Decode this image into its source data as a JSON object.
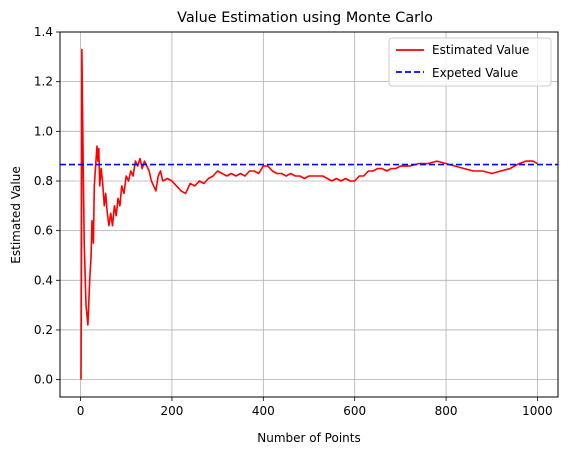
{
  "chart_data": {
    "type": "line",
    "title": "Value Estimation using Monte Carlo",
    "xlabel": "Number of Points",
    "ylabel": "Estimated Value",
    "xlim": [
      -45,
      1045
    ],
    "ylim": [
      -0.07,
      1.4
    ],
    "xticks": [
      0,
      200,
      400,
      600,
      800,
      1000
    ],
    "yticks": [
      0.0,
      0.2,
      0.4,
      0.6,
      0.8,
      1.0,
      1.2,
      1.4
    ],
    "xtick_labels": [
      "0",
      "200",
      "400",
      "600",
      "800",
      "1000"
    ],
    "ytick_labels": [
      "0.0",
      "0.2",
      "0.4",
      "0.6",
      "0.8",
      "1.0",
      "1.2",
      "1.4"
    ],
    "grid": true,
    "legend_position": "top-right",
    "series": [
      {
        "name": "Estimated Value",
        "color": "#ff0000",
        "style": "solid",
        "x": [
          1,
          2,
          3,
          5,
          8,
          12,
          16,
          20,
          23,
          25,
          28,
          30,
          33,
          36,
          38,
          40,
          42,
          45,
          48,
          52,
          55,
          58,
          62,
          66,
          70,
          74,
          78,
          82,
          86,
          90,
          95,
          100,
          105,
          110,
          115,
          120,
          125,
          130,
          135,
          140,
          145,
          150,
          155,
          160,
          165,
          170,
          175,
          180,
          190,
          200,
          210,
          220,
          230,
          240,
          250,
          260,
          270,
          280,
          290,
          300,
          310,
          320,
          330,
          340,
          350,
          360,
          370,
          380,
          390,
          400,
          410,
          420,
          430,
          440,
          450,
          460,
          470,
          480,
          490,
          500,
          510,
          520,
          530,
          540,
          550,
          560,
          570,
          580,
          590,
          600,
          610,
          620,
          630,
          640,
          650,
          660,
          670,
          680,
          690,
          700,
          720,
          740,
          760,
          780,
          800,
          820,
          840,
          860,
          880,
          900,
          920,
          940,
          960,
          975,
          990,
          1000
        ],
        "y": [
          0.0,
          0.5,
          1.33,
          1.0,
          0.55,
          0.3,
          0.22,
          0.4,
          0.5,
          0.64,
          0.55,
          0.78,
          0.86,
          0.94,
          0.88,
          0.93,
          0.78,
          0.85,
          0.8,
          0.7,
          0.75,
          0.68,
          0.62,
          0.67,
          0.62,
          0.7,
          0.66,
          0.73,
          0.7,
          0.78,
          0.75,
          0.82,
          0.8,
          0.84,
          0.82,
          0.88,
          0.86,
          0.89,
          0.85,
          0.88,
          0.86,
          0.84,
          0.8,
          0.78,
          0.76,
          0.82,
          0.84,
          0.8,
          0.81,
          0.8,
          0.78,
          0.76,
          0.75,
          0.79,
          0.78,
          0.8,
          0.79,
          0.81,
          0.82,
          0.84,
          0.83,
          0.82,
          0.83,
          0.82,
          0.83,
          0.82,
          0.84,
          0.84,
          0.83,
          0.86,
          0.86,
          0.84,
          0.83,
          0.83,
          0.82,
          0.83,
          0.82,
          0.82,
          0.81,
          0.82,
          0.82,
          0.82,
          0.82,
          0.81,
          0.8,
          0.81,
          0.8,
          0.81,
          0.8,
          0.8,
          0.82,
          0.82,
          0.84,
          0.84,
          0.85,
          0.85,
          0.84,
          0.85,
          0.85,
          0.86,
          0.86,
          0.87,
          0.87,
          0.88,
          0.87,
          0.86,
          0.85,
          0.84,
          0.84,
          0.83,
          0.84,
          0.85,
          0.87,
          0.88,
          0.88,
          0.87
        ]
      },
      {
        "name": "Expeted Value",
        "color": "#0000ff",
        "style": "dashed",
        "y_constant": 0.866
      }
    ]
  }
}
